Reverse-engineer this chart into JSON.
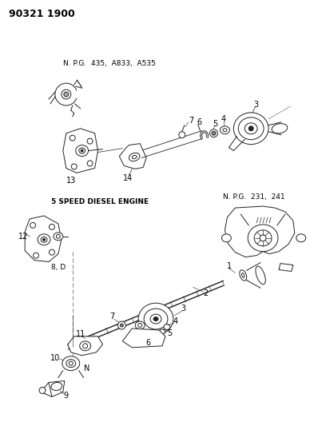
{
  "title": "90321 1900",
  "background_color": "#ffffff",
  "diagram_color": "#222222",
  "top_label": "N. P.G.  435,  A833,  A535",
  "middle_label": "5 SPEED DIESEL ENGINE",
  "right_top_label": "N. P.G.  231,  241",
  "bottom_left_label": "8, D",
  "fig_width": 3.98,
  "fig_height": 5.33,
  "dpi": 100
}
